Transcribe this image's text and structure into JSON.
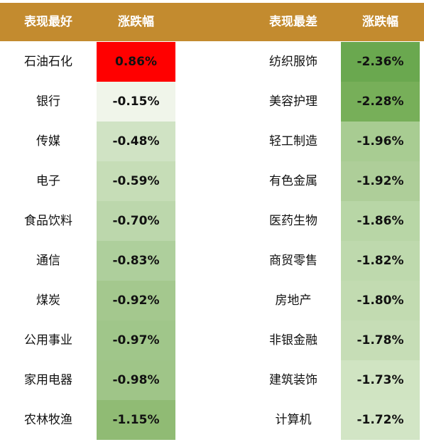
{
  "chart_data": {
    "type": "table",
    "columns": [
      "表现最好",
      "涨跌幅",
      "表现最差",
      "涨跌幅"
    ],
    "best": [
      {
        "name": "石油石化",
        "change": "0.86%",
        "value": 0.86,
        "color": "#ff0000"
      },
      {
        "name": "银行",
        "change": "-0.15%",
        "value": -0.15,
        "color": "#f0f5ea"
      },
      {
        "name": "传媒",
        "change": "-0.48%",
        "value": -0.48,
        "color": "#d0e3c4"
      },
      {
        "name": "电子",
        "change": "-0.59%",
        "value": -0.59,
        "color": "#c6ddb7"
      },
      {
        "name": "食品饮料",
        "change": "-0.70%",
        "value": -0.7,
        "color": "#bcd7ac"
      },
      {
        "name": "通信",
        "change": "-0.83%",
        "value": -0.83,
        "color": "#aecf9c"
      },
      {
        "name": "煤炭",
        "change": "-0.92%",
        "value": -0.92,
        "color": "#a4c88e"
      },
      {
        "name": "公用事业",
        "change": "-0.97%",
        "value": -0.97,
        "color": "#a0c68a"
      },
      {
        "name": "家用电器",
        "change": "-0.98%",
        "value": -0.98,
        "color": "#9fc588"
      },
      {
        "name": "农林牧渔",
        "change": "-1.15%",
        "value": -1.15,
        "color": "#90bb74"
      }
    ],
    "worst": [
      {
        "name": "纺织服饰",
        "change": "-2.36%",
        "value": -2.36,
        "color": "#6aa84f"
      },
      {
        "name": "美容护理",
        "change": "-2.28%",
        "value": -2.28,
        "color": "#77af59"
      },
      {
        "name": "轻工制造",
        "change": "-1.96%",
        "value": -1.96,
        "color": "#a8cc92"
      },
      {
        "name": "有色金属",
        "change": "-1.92%",
        "value": -1.92,
        "color": "#aece99"
      },
      {
        "name": "医药生物",
        "change": "-1.86%",
        "value": -1.86,
        "color": "#b8d6a6"
      },
      {
        "name": "商贸零售",
        "change": "-1.82%",
        "value": -1.82,
        "color": "#bed9ad"
      },
      {
        "name": "房地产",
        "change": "-1.80%",
        "value": -1.8,
        "color": "#c2dbb1"
      },
      {
        "name": "非银金融",
        "change": "-1.78%",
        "value": -1.78,
        "color": "#c6ddb6"
      },
      {
        "name": "建筑装饰",
        "change": "-1.73%",
        "value": -1.73,
        "color": "#d0e4c2"
      },
      {
        "name": "计算机",
        "change": "-1.72%",
        "value": -1.72,
        "color": "#d2e5c5"
      }
    ]
  }
}
